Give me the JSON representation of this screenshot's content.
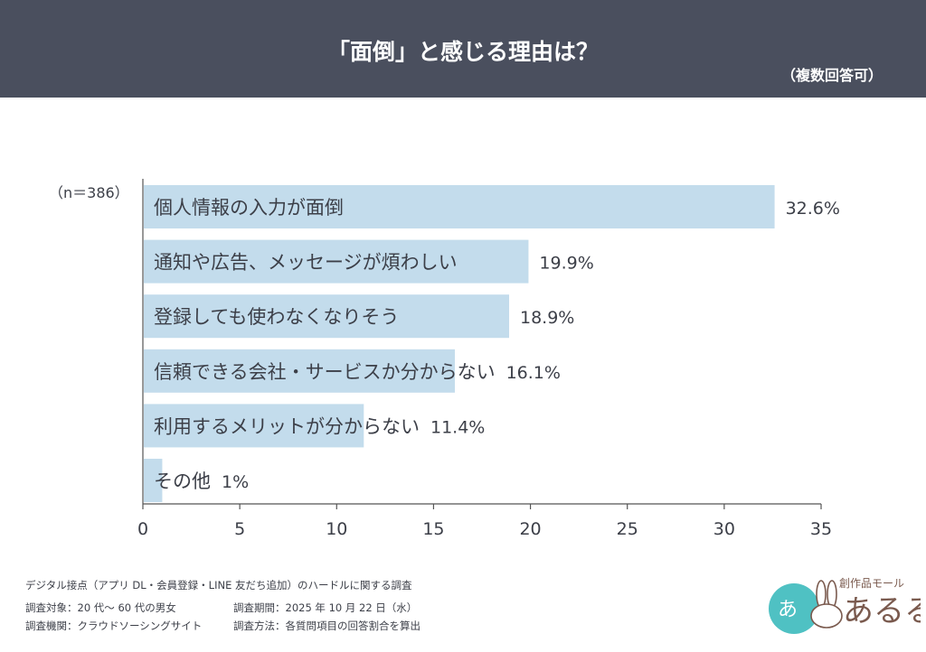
{
  "header": {
    "title": "「面倒」と感じる理由は？",
    "subtitle": "（複数回答可）",
    "background": "#4a4f5e"
  },
  "chart_data": {
    "type": "bar",
    "orientation": "horizontal",
    "sample_size_label": "（n＝386）",
    "categories": [
      "個人情報の入力が面倒",
      "通知や広告、メッセージが煩わしい",
      "登録しても使わなくなりそう",
      "信頼できる会社・サービスか分からない",
      "利用するメリットが分からない",
      "その他"
    ],
    "values": [
      32.6,
      19.9,
      18.9,
      16.1,
      11.4,
      1
    ],
    "value_labels": [
      "32.6%",
      "19.9%",
      "18.9%",
      "16.1%",
      "11.4%",
      "1%"
    ],
    "xlim": [
      0,
      35
    ],
    "xticks": [
      "0",
      "5",
      "10",
      "15",
      "20",
      "25",
      "30",
      "35"
    ],
    "xtick_values": [
      0,
      5,
      10,
      15,
      20,
      25,
      30,
      35
    ],
    "grid": false,
    "bar_color": "#c3dcec"
  },
  "footer": {
    "survey_title": "デジタル接点（アプリ DL・会員登録・LINE 友だち追加）のハードルに関する調査",
    "target": "調査対象：20 代～ 60 代の男女",
    "period": "調査期間：2025 年 10 月 22 日（水）",
    "agency": "調査機関：クラウドソーシングサイト",
    "method": "調査方法：各質問項目の回答割合を算出"
  },
  "logo": {
    "tagline": "創作品モール",
    "name": "あるる",
    "accent": "#4fc1c3",
    "text_color": "#7a5a4e"
  }
}
